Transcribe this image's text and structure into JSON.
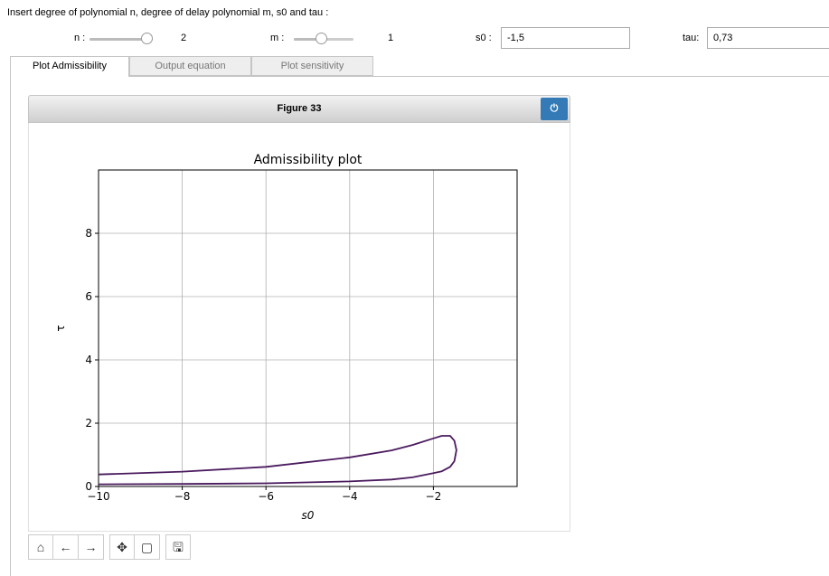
{
  "instructions": "Insert degree of polynomial n, degree of delay polynomial m, s0 and tau :",
  "controls": {
    "n": {
      "label": "n :",
      "value": "2",
      "fraction": 1.0
    },
    "m": {
      "label": "m :",
      "value": "1",
      "fraction": 0.45
    },
    "s0": {
      "label": "s0 :",
      "value": "-1,5"
    },
    "tau": {
      "label": "tau:",
      "value": "0,73"
    }
  },
  "tabs": [
    {
      "label": "Plot Admissibility",
      "active": true
    },
    {
      "label": "Output equation",
      "active": false
    },
    {
      "label": "Plot sensitivity",
      "active": false
    }
  ],
  "figure": {
    "header_title": "Figure 33",
    "power_icon": "power-icon",
    "toolbar_icons": [
      "home-icon",
      "back-icon",
      "forward-icon",
      "pan-icon",
      "zoom-rect-icon",
      "save-icon"
    ]
  },
  "chart_data": {
    "type": "line",
    "title": "Admissibility plot",
    "xlabel": "s0",
    "ylabel": "τ",
    "xlim": [
      -10,
      0
    ],
    "ylim": [
      0,
      10
    ],
    "xticks": [
      -10,
      -8,
      -6,
      -4,
      -2
    ],
    "xtick_labels": [
      "−10",
      "−8",
      "−6",
      "−4",
      "−2"
    ],
    "yticks": [
      0,
      2,
      4,
      6,
      8
    ],
    "ytick_labels": [
      "0",
      "2",
      "4",
      "6",
      "8"
    ],
    "grid": true,
    "color": "#4a1b5e",
    "series": [
      {
        "x": [
          -10,
          -8,
          -6,
          -4,
          -3,
          -2.5,
          -2,
          -1.8,
          -1.6,
          -1.5,
          -1.45,
          -1.5,
          -1.6,
          -1.8,
          -2,
          -2.5,
          -3,
          -4,
          -6,
          -8,
          -10
        ],
        "y": [
          0.38,
          0.47,
          0.62,
          0.92,
          1.14,
          1.31,
          1.52,
          1.6,
          1.6,
          1.45,
          1.15,
          0.8,
          0.62,
          0.48,
          0.42,
          0.29,
          0.22,
          0.16,
          0.1,
          0.08,
          0.07
        ]
      }
    ]
  }
}
